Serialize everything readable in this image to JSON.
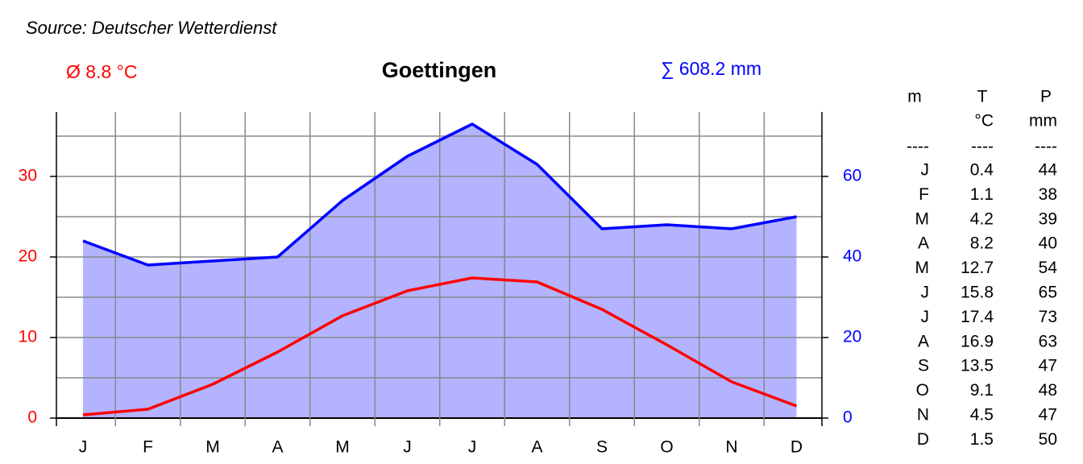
{
  "chart_data": {
    "type": "climate",
    "title": "Goettingen",
    "source": "Source: Deutscher Wetterdienst",
    "annotations": [
      "Ø 8.8 °C",
      "∑ 608.2 mm"
    ],
    "categories": [
      "J",
      "F",
      "M",
      "A",
      "M",
      "J",
      "J",
      "A",
      "S",
      "O",
      "N",
      "D"
    ],
    "series": [
      {
        "color": "#ff0000",
        "axis": "y",
        "values": [
          0.4,
          1.1,
          4.2,
          8.2,
          12.7,
          15.8,
          17.4,
          16.9,
          13.5,
          9.1,
          4.5,
          1.5
        ]
      },
      {
        "color": "#0000ff",
        "fill": "#b3b3ff",
        "axis": "y2",
        "values": [
          44,
          38,
          39,
          40,
          54,
          65,
          73,
          63,
          47,
          48,
          47,
          50
        ]
      }
    ],
    "ylim": [
      -1,
      38
    ],
    "yticks": [
      0,
      10,
      20,
      30
    ],
    "y2lim": [
      -2,
      76
    ],
    "y2ticks": [
      0,
      20,
      40,
      60
    ],
    "ygrid": [
      0,
      5,
      10,
      15,
      20,
      25,
      30,
      35
    ],
    "grid": true
  },
  "table": {
    "headers": [
      [
        "m"
      ],
      [
        "T",
        "°C"
      ],
      [
        "P",
        "mm"
      ]
    ],
    "separator": "----"
  }
}
